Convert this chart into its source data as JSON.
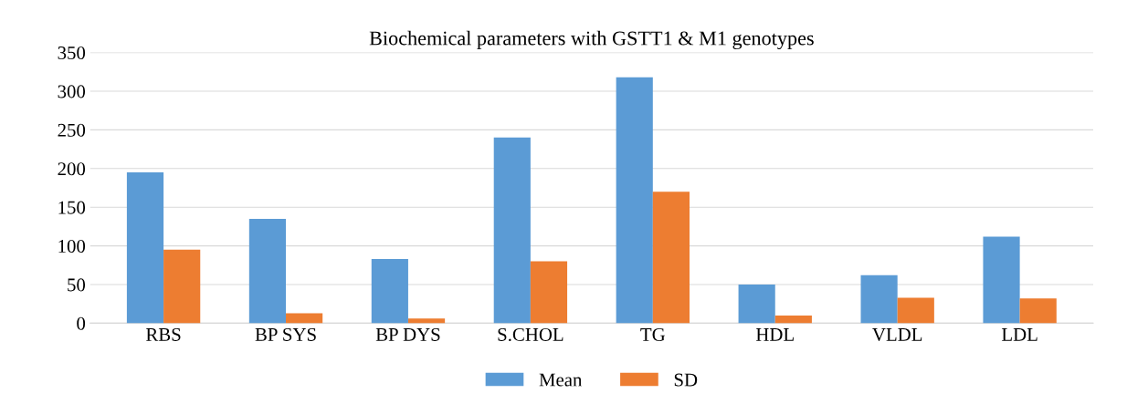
{
  "chart_data": {
    "type": "bar",
    "title": "Biochemical parameters with GSTT1 & M1 genotypes",
    "categories": [
      "RBS",
      "BP SYS",
      "BP DYS",
      "S.CHOL",
      "TG",
      "HDL",
      "VLDL",
      "LDL"
    ],
    "series": [
      {
        "name": "Mean",
        "color": "#5b9bd5",
        "values": [
          195,
          135,
          83,
          240,
          318,
          50,
          62,
          112
        ]
      },
      {
        "name": "SD",
        "color": "#ed7d31",
        "values": [
          95,
          13,
          6,
          80,
          170,
          10,
          33,
          32
        ]
      }
    ],
    "ylim": [
      0,
      350
    ],
    "yticks": [
      0,
      50,
      100,
      150,
      200,
      250,
      300,
      350
    ],
    "grid": "y",
    "legend": "bottom"
  }
}
